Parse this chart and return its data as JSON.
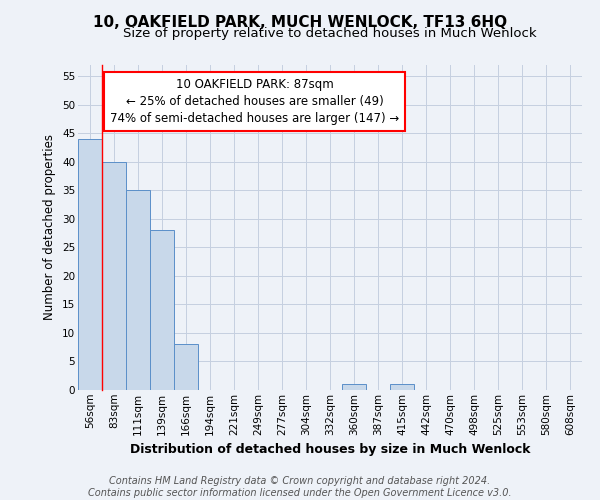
{
  "title": "10, OAKFIELD PARK, MUCH WENLOCK, TF13 6HQ",
  "subtitle": "Size of property relative to detached houses in Much Wenlock",
  "xlabel": "Distribution of detached houses by size in Much Wenlock",
  "ylabel": "Number of detached properties",
  "categories": [
    "56sqm",
    "83sqm",
    "111sqm",
    "139sqm",
    "166sqm",
    "194sqm",
    "221sqm",
    "249sqm",
    "277sqm",
    "304sqm",
    "332sqm",
    "360sqm",
    "387sqm",
    "415sqm",
    "442sqm",
    "470sqm",
    "498sqm",
    "525sqm",
    "553sqm",
    "580sqm",
    "608sqm"
  ],
  "values": [
    44,
    40,
    35,
    28,
    8,
    0,
    0,
    0,
    0,
    0,
    0,
    1,
    0,
    1,
    0,
    0,
    0,
    0,
    0,
    0,
    0
  ],
  "bar_color": "#c8d8ea",
  "bar_edge_color": "#5b8fc9",
  "grid_color": "#c5cfe0",
  "background_color": "#eef2f8",
  "red_line_x": 1,
  "ylim": [
    0,
    57
  ],
  "yticks": [
    0,
    5,
    10,
    15,
    20,
    25,
    30,
    35,
    40,
    45,
    50,
    55
  ],
  "annotation_text_line1": "10 OAKFIELD PARK: 87sqm",
  "annotation_text_line2": "← 25% of detached houses are smaller (49)",
  "annotation_text_line3": "74% of semi-detached houses are larger (147) →",
  "footnote": "Contains HM Land Registry data © Crown copyright and database right 2024.\nContains public sector information licensed under the Open Government Licence v3.0.",
  "title_fontsize": 11,
  "subtitle_fontsize": 9.5,
  "xlabel_fontsize": 9,
  "ylabel_fontsize": 8.5,
  "tick_fontsize": 7.5,
  "annotation_fontsize": 8.5,
  "footnote_fontsize": 7
}
